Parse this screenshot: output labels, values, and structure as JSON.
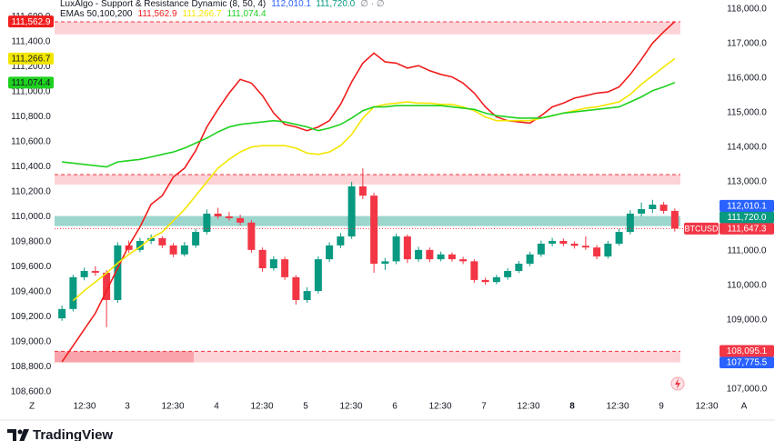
{
  "chart_data": {
    "type": "candlestick",
    "symbol": "BTCUSD",
    "last_label": "111,647.3",
    "last_color": "#f23645",
    "up_color": "#089981",
    "down_color": "#f23645",
    "legends": [
      {
        "text": "LuxAlgo - Support & Resistance Dynamic (8, 50, 4)",
        "tail": "∅ · ∅"
      },
      {
        "text": "EMAs 50,100,200"
      }
    ],
    "xlim": [
      0,
      59.43
    ],
    "xticks": [
      {
        "value": 2.53,
        "label": "12:30"
      },
      {
        "value": 6.37,
        "label": "3"
      },
      {
        "value": 10.45,
        "label": "12:30"
      },
      {
        "value": 14.37,
        "label": "4"
      },
      {
        "value": 18.45,
        "label": "12:30"
      },
      {
        "value": 22.37,
        "label": "5"
      },
      {
        "value": 26.45,
        "label": "12:30"
      },
      {
        "value": 30.37,
        "label": "6"
      },
      {
        "value": 34.45,
        "label": "12:30"
      },
      {
        "value": 38.37,
        "label": "7"
      },
      {
        "value": 42.37,
        "label": "12:30"
      },
      {
        "value": 46.29,
        "label": "8",
        "bold": true
      },
      {
        "value": 50.37,
        "label": "12:30"
      },
      {
        "value": 54.29,
        "label": "9"
      },
      {
        "value": 58.37,
        "label": "12:30"
      }
    ],
    "ylim": [
      106684,
      118263
    ],
    "yticks": [
      {
        "value": 107000,
        "label": "107,000.0"
      },
      {
        "value": 108000,
        "label": "108,000.0"
      },
      {
        "value": 109000,
        "label": "109,000.0"
      },
      {
        "value": 110000,
        "label": "110,000.0"
      },
      {
        "value": 111000,
        "label": "111,000.0"
      },
      {
        "value": 112000,
        "label": "112,000.0"
      },
      {
        "value": 113000,
        "label": "113,000.0"
      },
      {
        "value": 114000,
        "label": "114,000.0"
      },
      {
        "value": 115000,
        "label": "115,000.0"
      },
      {
        "value": 116000,
        "label": "116,000.0"
      },
      {
        "value": 117000,
        "label": "117,000.0"
      },
      {
        "value": 118000,
        "label": "118,000.0"
      }
    ],
    "y2lim": [
      108535,
      111735
    ],
    "y2ticks": [
      {
        "value": 108600,
        "label": "108,600.0"
      },
      {
        "value": 108800,
        "label": "108,800.0"
      },
      {
        "value": 109000,
        "label": "109,000.0"
      },
      {
        "value": 109200,
        "label": "109,200.0"
      },
      {
        "value": 109400,
        "label": "109,400.0"
      },
      {
        "value": 109600,
        "label": "109,600.0"
      },
      {
        "value": 109800,
        "label": "109,800.0"
      },
      {
        "value": 110000,
        "label": "110,000.0"
      },
      {
        "value": 110200,
        "label": "110,200.0"
      },
      {
        "value": 110400,
        "label": "110,400.0"
      },
      {
        "value": 110600,
        "label": "110,600.0"
      },
      {
        "value": 110800,
        "label": "110,800.0"
      },
      {
        "value": 111000,
        "label": "111,000.0"
      },
      {
        "value": 111200,
        "label": "111,200.0"
      },
      {
        "value": 111400,
        "label": "111,400.0"
      },
      {
        "value": 111600,
        "label": "111,600.0"
      }
    ],
    "zones": [
      {
        "top": 117630,
        "bottom": 117270,
        "color": "#f23645"
      },
      {
        "top": 113210,
        "bottom": 112920,
        "color": "#f23645"
      },
      {
        "top": {
          "value": 112010.1,
          "label": "112,010.1",
          "color": "#2962ff"
        },
        "bottom": {
          "value": 111720.0,
          "label": "111,720.0",
          "color": "#089981"
        },
        "color": "#089981"
      },
      {
        "top": {
          "value": 108095.1,
          "label": "108,095.1",
          "color": "#f23645"
        },
        "bottom": {
          "value": 107775.5,
          "label": "107,775.5",
          "color": "#2962ff"
        },
        "color": "#f23645"
      }
    ],
    "ohlc": [
      [
        109050,
        109420,
        108980,
        109320
      ],
      [
        109320,
        110310,
        109250,
        110240
      ],
      [
        110240,
        110520,
        110150,
        110420
      ],
      [
        110420,
        110560,
        110280,
        110370
      ],
      [
        110370,
        110450,
        108790,
        109580
      ],
      [
        109580,
        111250,
        109500,
        111160
      ],
      [
        111160,
        111300,
        110950,
        111030
      ],
      [
        111030,
        111380,
        110960,
        111290
      ],
      [
        111290,
        111480,
        111200,
        111370
      ],
      [
        111370,
        111430,
        111080,
        111160
      ],
      [
        111160,
        111230,
        110820,
        110900
      ],
      [
        110900,
        111260,
        110840,
        111160
      ],
      [
        111160,
        111640,
        111090,
        111550
      ],
      [
        111550,
        112200,
        111480,
        112080
      ],
      [
        112080,
        112250,
        111930,
        112000
      ],
      [
        112000,
        112130,
        111880,
        111950
      ],
      [
        111950,
        112050,
        111740,
        111820
      ],
      [
        111820,
        111890,
        110950,
        111030
      ],
      [
        111030,
        111100,
        110400,
        110500
      ],
      [
        110500,
        110850,
        110430,
        110760
      ],
      [
        110760,
        110830,
        110160,
        110240
      ],
      [
        110240,
        110300,
        109450,
        109580
      ],
      [
        109580,
        109950,
        109500,
        109840
      ],
      [
        109840,
        110850,
        109770,
        110760
      ],
      [
        110760,
        111250,
        110680,
        111160
      ],
      [
        111160,
        111520,
        111080,
        111420
      ],
      [
        111420,
        113000,
        111350,
        112870
      ],
      [
        112870,
        113390,
        112500,
        112600
      ],
      [
        112600,
        112680,
        110370,
        110630
      ],
      [
        110630,
        110800,
        110450,
        110700
      ],
      [
        110700,
        111500,
        110620,
        111420
      ],
      [
        111420,
        111480,
        110650,
        110760
      ],
      [
        110760,
        111120,
        110690,
        111030
      ],
      [
        111030,
        111100,
        110680,
        110760
      ],
      [
        110760,
        110980,
        110700,
        110900
      ],
      [
        110900,
        110960,
        110690,
        110760
      ],
      [
        110760,
        110830,
        110620,
        110700
      ],
      [
        110700,
        110760,
        110080,
        110160
      ],
      [
        110160,
        110230,
        110020,
        110100
      ],
      [
        110100,
        110310,
        110040,
        110240
      ],
      [
        110240,
        110500,
        110170,
        110420
      ],
      [
        110420,
        110710,
        110360,
        110630
      ],
      [
        110630,
        110980,
        110560,
        110900
      ],
      [
        110900,
        111300,
        110830,
        111210
      ],
      [
        111210,
        111380,
        111130,
        111290
      ],
      [
        111290,
        111360,
        111140,
        111210
      ],
      [
        111210,
        111280,
        111070,
        111150
      ],
      [
        111150,
        111420,
        111030,
        111100
      ],
      [
        111100,
        111170,
        110760,
        110840
      ],
      [
        110840,
        111290,
        110780,
        111210
      ],
      [
        111210,
        111640,
        111150,
        111550
      ],
      [
        111550,
        112180,
        111480,
        112080
      ],
      [
        112080,
        112400,
        112000,
        112210
      ],
      [
        112210,
        112480,
        112100,
        112340
      ],
      [
        112340,
        112420,
        112080,
        112160
      ],
      [
        112160,
        112230,
        111560,
        111647.3
      ]
    ],
    "series": [
      {
        "color": "#f01d1d",
        "axis": "y2",
        "last_label": "111,562.9",
        "label_text_color": "#ffffff",
        "values": [
          108840,
          108970,
          109100,
          109230,
          109410,
          109590,
          109770,
          109920,
          110100,
          110170,
          110320,
          110390,
          110530,
          110720,
          110860,
          110990,
          111100,
          111070,
          110970,
          110830,
          110740,
          110720,
          110690,
          110720,
          110770,
          110900,
          111080,
          111230,
          111310,
          111240,
          111230,
          111190,
          111210,
          111170,
          111140,
          111120,
          111070,
          110990,
          110880,
          110800,
          110770,
          110760,
          110750,
          110810,
          110880,
          110910,
          110950,
          110970,
          110990,
          111000,
          111040,
          111140,
          111260,
          111390,
          111480,
          111562.9
        ]
      },
      {
        "color": "#f2e600",
        "axis": "y2",
        "last_label": "111,266.7",
        "label_text_color": "#131722",
        "values": [
          null,
          109330,
          109410,
          109480,
          109550,
          109630,
          109700,
          109760,
          109830,
          109880,
          109970,
          110060,
          110170,
          110280,
          110390,
          110460,
          110520,
          110560,
          110570,
          110570,
          110570,
          110550,
          110510,
          110500,
          110520,
          110570,
          110660,
          110790,
          110880,
          110900,
          110910,
          110920,
          110910,
          110910,
          110900,
          110900,
          110880,
          110850,
          110800,
          110770,
          110770,
          110770,
          110770,
          110790,
          110810,
          110830,
          110850,
          110870,
          110880,
          110900,
          110920,
          110980,
          111060,
          111130,
          111200,
          111266.7
        ]
      },
      {
        "color": "#1fd11f",
        "axis": "y2",
        "last_label": "111,074.4",
        "label_text_color": "#131722",
        "values": [
          110440,
          110430,
          110420,
          110410,
          110400,
          110440,
          110450,
          110460,
          110480,
          110500,
          110520,
          110550,
          110590,
          110630,
          110680,
          110720,
          110740,
          110750,
          110760,
          110770,
          110760,
          110740,
          110720,
          110690,
          110710,
          110740,
          110790,
          110850,
          110880,
          110880,
          110890,
          110890,
          110890,
          110890,
          110890,
          110880,
          110870,
          110860,
          110830,
          110810,
          110800,
          110790,
          110790,
          110790,
          110810,
          110830,
          110840,
          110850,
          110860,
          110870,
          110880,
          110920,
          110960,
          111010,
          111040,
          111074.4
        ]
      }
    ],
    "zoom_button": "Z",
    "auto_button": "A",
    "brand": "TradingView"
  }
}
